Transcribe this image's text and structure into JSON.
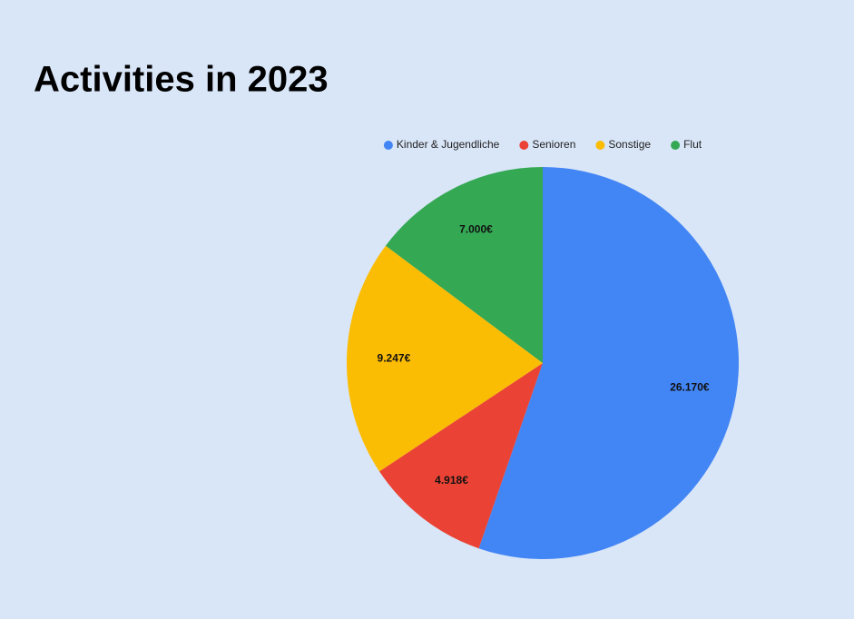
{
  "chart_data": {
    "type": "pie",
    "title": "Activities in 2023",
    "categories": [
      "Kinder & Jugendliche",
      "Senioren",
      "Sonstige",
      "Flut"
    ],
    "values": [
      26170,
      4918,
      9247,
      7000
    ],
    "value_labels": [
      "26.170€",
      "4.918€",
      "9.247€",
      "7.000€"
    ],
    "colors": [
      "#4285f4",
      "#ea4335",
      "#fbbc04",
      "#34a853"
    ],
    "legend": "top"
  }
}
